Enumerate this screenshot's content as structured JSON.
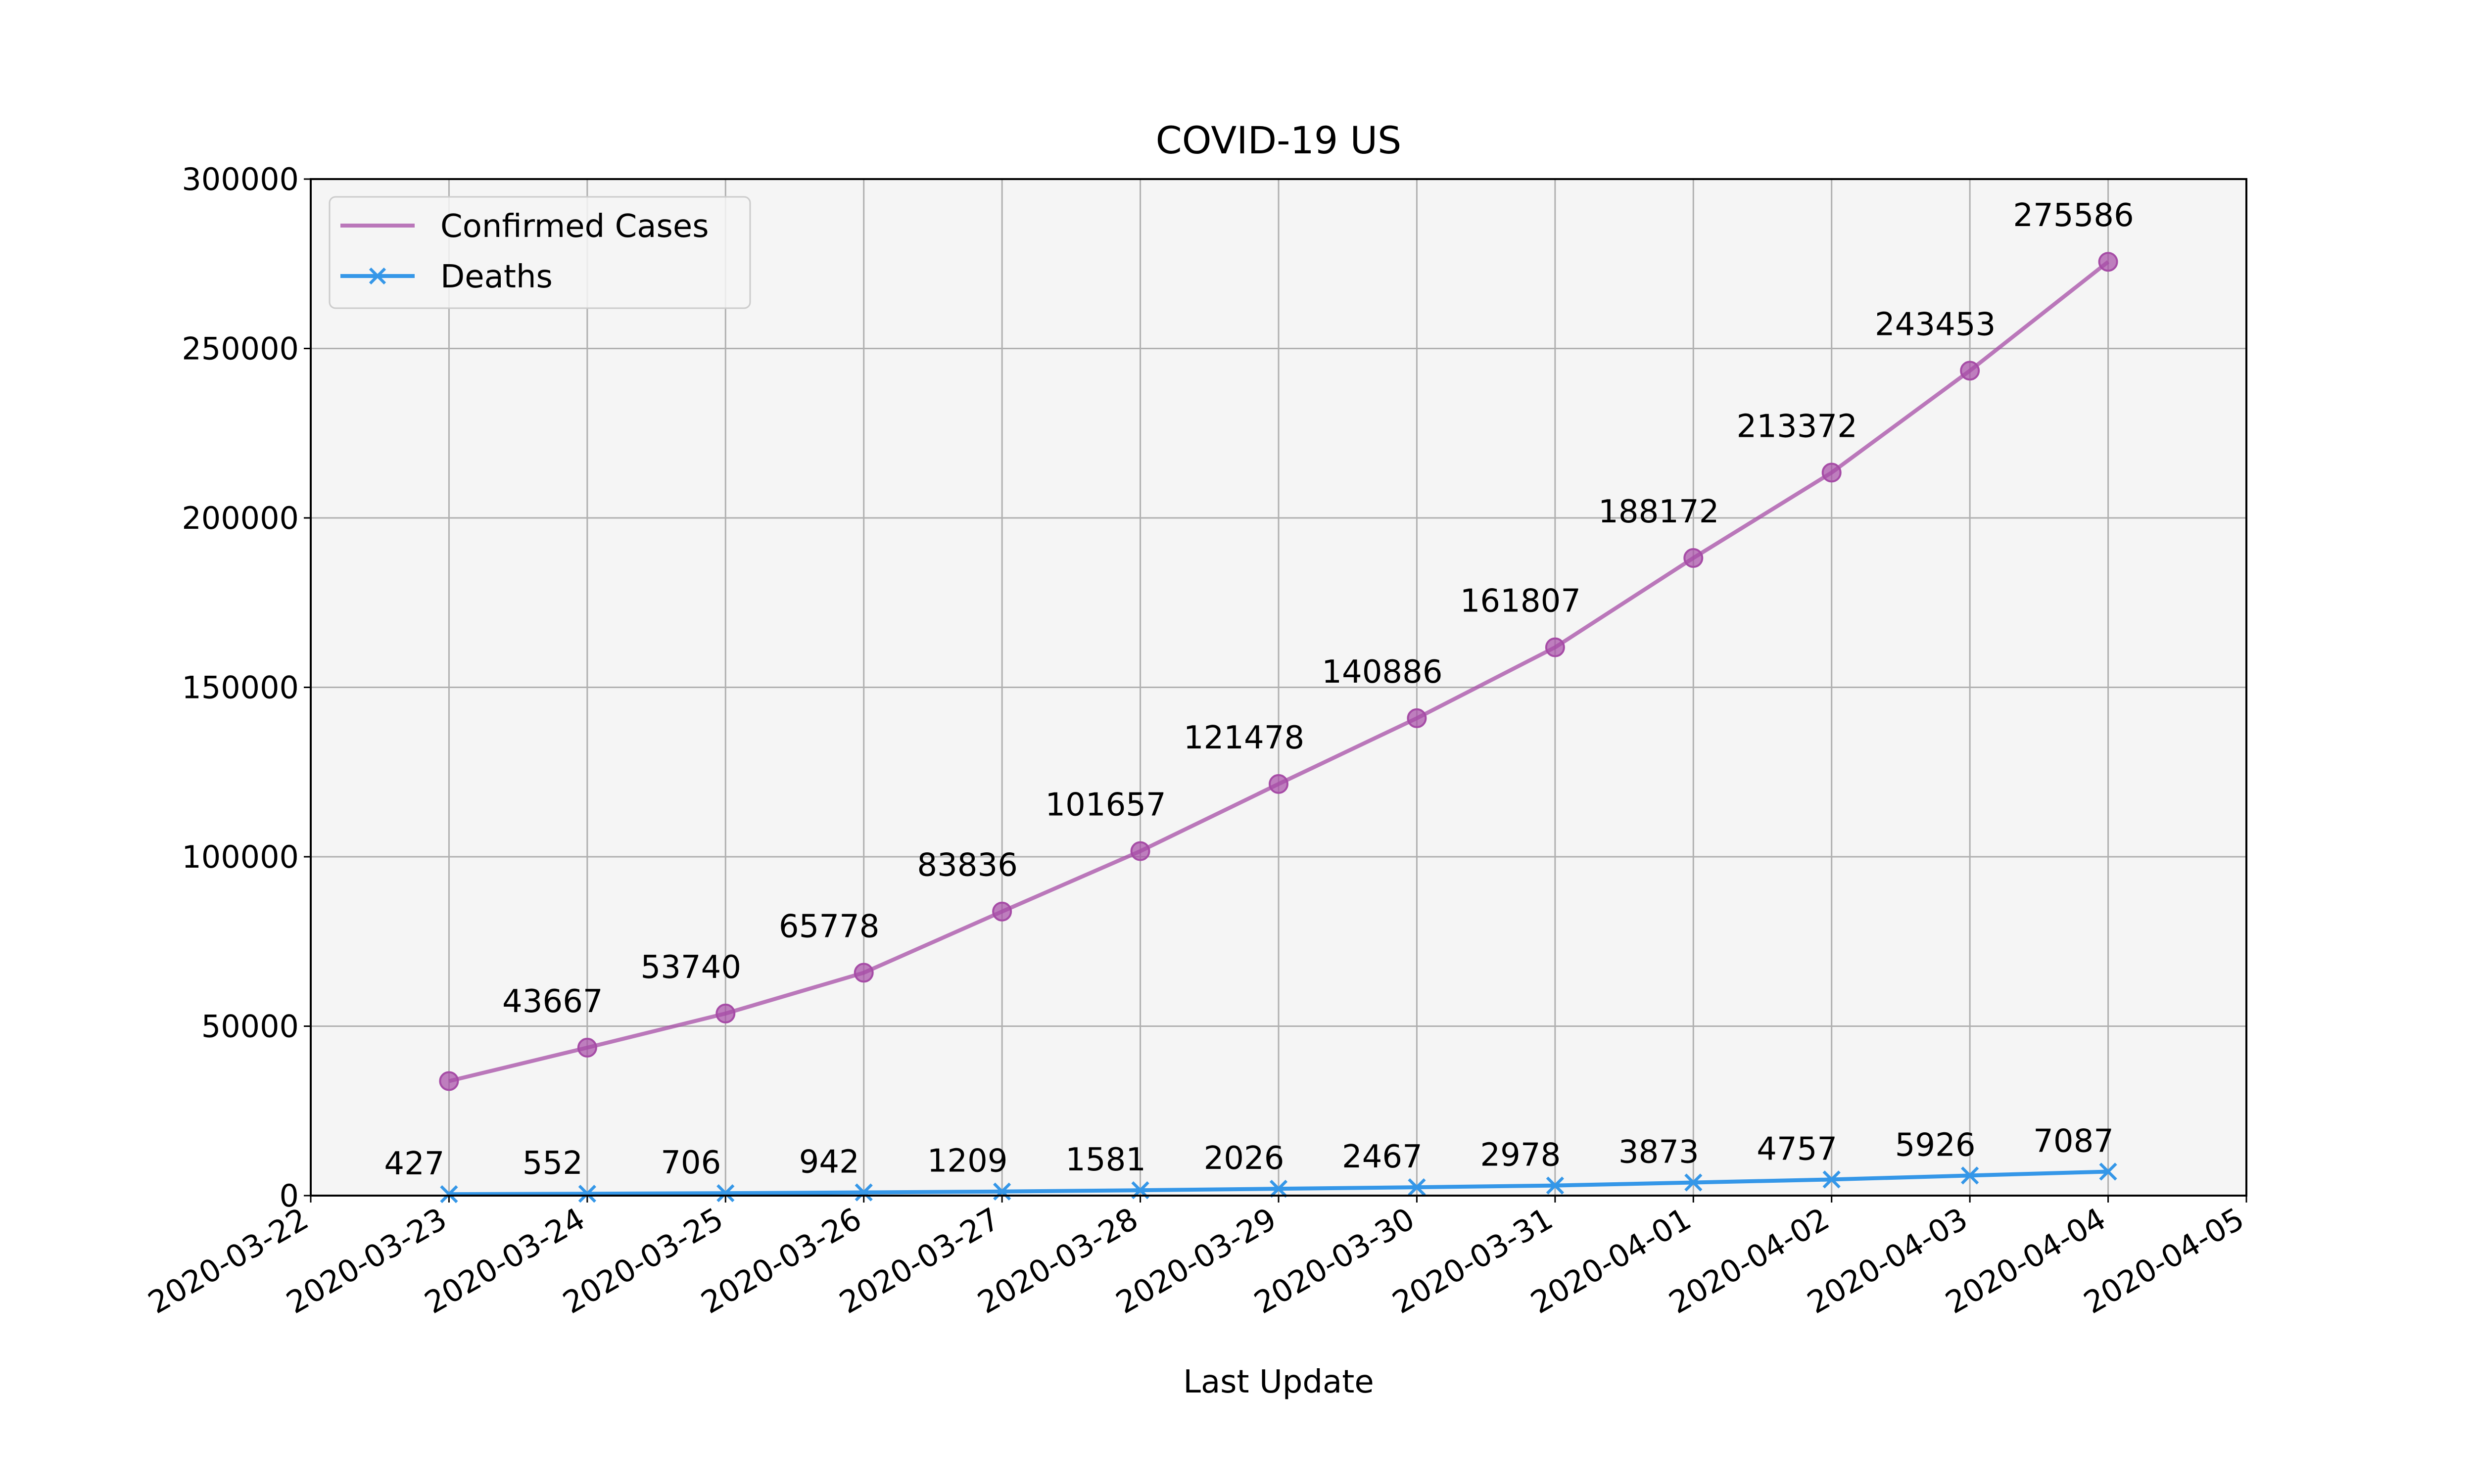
{
  "chart_data": {
    "type": "line",
    "title": "COVID-19 US",
    "xlabel": "Last Update",
    "ylabel": "",
    "x_ticks": [
      "2020-03-22",
      "2020-03-23",
      "2020-03-24",
      "2020-03-25",
      "2020-03-26",
      "2020-03-27",
      "2020-03-28",
      "2020-03-29",
      "2020-03-30",
      "2020-03-31",
      "2020-04-01",
      "2020-04-02",
      "2020-04-03",
      "2020-04-04",
      "2020-04-05"
    ],
    "xlim": [
      "2020-03-22",
      "2020-04-05"
    ],
    "y_ticks": [
      0,
      50000,
      100000,
      150000,
      200000,
      250000,
      300000
    ],
    "ylim": [
      0,
      300000
    ],
    "grid": true,
    "legend_position": "top-left",
    "series": [
      {
        "name": "Confirmed Cases",
        "color": "#a64ca6",
        "marker": "circle",
        "x": [
          "2020-03-23",
          "2020-03-24",
          "2020-03-25",
          "2020-03-26",
          "2020-03-27",
          "2020-03-28",
          "2020-03-29",
          "2020-03-30",
          "2020-03-31",
          "2020-04-01",
          "2020-04-02",
          "2020-04-03",
          "2020-04-04"
        ],
        "values": [
          33800,
          43667,
          53740,
          65778,
          83836,
          101657,
          121478,
          140886,
          161807,
          188172,
          213372,
          243453,
          275586
        ],
        "labels": [
          "",
          "43667",
          "53740",
          "65778",
          "83836",
          "101657",
          "121478",
          "140886",
          "161807",
          "188172",
          "213372",
          "243453",
          "275586"
        ]
      },
      {
        "name": "Deaths",
        "color": "#3597e8",
        "marker": "x",
        "x": [
          "2020-03-23",
          "2020-03-24",
          "2020-03-25",
          "2020-03-26",
          "2020-03-27",
          "2020-03-28",
          "2020-03-29",
          "2020-03-30",
          "2020-03-31",
          "2020-04-01",
          "2020-04-02",
          "2020-04-03",
          "2020-04-04"
        ],
        "values": [
          427,
          552,
          706,
          942,
          1209,
          1581,
          2026,
          2467,
          2978,
          3873,
          4757,
          5926,
          7087
        ],
        "labels": [
          "427",
          "552",
          "706",
          "942",
          "1209",
          "1581",
          "2026",
          "2467",
          "2978",
          "3873",
          "4757",
          "5926",
          "7087"
        ]
      }
    ]
  }
}
